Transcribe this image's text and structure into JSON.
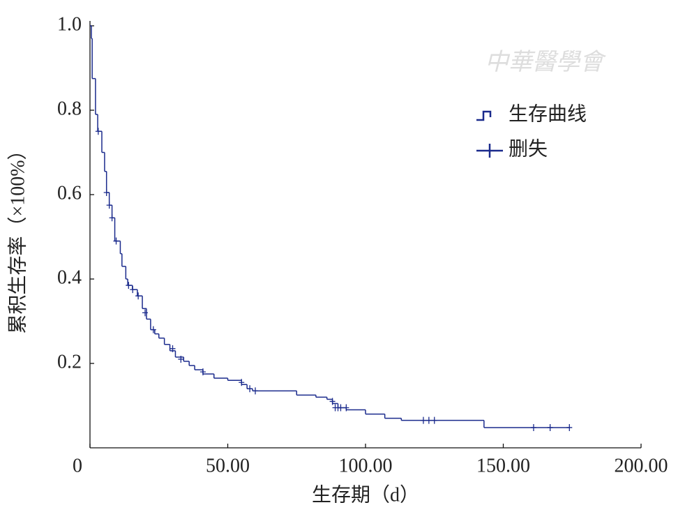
{
  "chart_data": {
    "type": "survival",
    "x_label": "生存期（d）",
    "y_label": "累积生存率（×100%）",
    "watermark": "中華醫學會",
    "xlim": [
      0,
      200
    ],
    "ylim": [
      0,
      1
    ],
    "xticks": [
      0,
      {
        "value": 50,
        "label": "50.00"
      },
      {
        "value": 100,
        "label": "100.00"
      },
      {
        "value": 150,
        "label": "150.00"
      },
      {
        "value": 200,
        "label": "200.00"
      }
    ],
    "yticks": [
      {
        "value": 0.2,
        "label": "0.2"
      },
      {
        "value": 0.4,
        "label": "0.4"
      },
      {
        "value": 0.6,
        "label": "0.6"
      },
      {
        "value": 0.8,
        "label": "0.8"
      },
      {
        "value": 1,
        "label": "1.0"
      }
    ],
    "legend_position": "upper right",
    "series": [
      {
        "name": "生存曲线",
        "color": "#1a2a8c",
        "x": [
          0,
          0.5,
          0.8,
          2,
          2.8,
          4.3,
          5.3,
          6,
          7,
          8,
          9,
          11,
          11.6,
          13,
          13.7,
          15.4,
          17.2,
          19,
          20.5,
          22,
          23.5,
          25,
          27,
          29,
          31,
          34,
          36,
          38,
          41,
          45,
          50,
          55,
          57,
          59,
          75,
          82,
          86,
          88,
          90,
          93,
          100,
          107,
          113,
          143,
          174
        ],
        "values": [
          1,
          0.97,
          0.875,
          0.79,
          0.75,
          0.7,
          0.655,
          0.605,
          0.575,
          0.545,
          0.49,
          0.46,
          0.43,
          0.4,
          0.385,
          0.375,
          0.36,
          0.33,
          0.305,
          0.28,
          0.27,
          0.26,
          0.245,
          0.23,
          0.215,
          0.205,
          0.195,
          0.185,
          0.175,
          0.165,
          0.16,
          0.15,
          0.14,
          0.135,
          0.125,
          0.12,
          0.115,
          0.105,
          0.095,
          0.09,
          0.08,
          0.07,
          0.065,
          0.048,
          0.048
        ]
      },
      {
        "name": "删失",
        "color": "#1a2a8c",
        "x": [
          3,
          6,
          7,
          8,
          9.5,
          14,
          15.5,
          17.5,
          20,
          23,
          30,
          33,
          41,
          55,
          58,
          60,
          88,
          89,
          90,
          91,
          93,
          121,
          123,
          125,
          161,
          167,
          174
        ],
        "values": [
          0.75,
          0.605,
          0.575,
          0.545,
          0.49,
          0.385,
          0.375,
          0.36,
          0.32,
          0.28,
          0.235,
          0.21,
          0.18,
          0.155,
          0.14,
          0.135,
          0.11,
          0.095,
          0.095,
          0.095,
          0.095,
          0.065,
          0.065,
          0.065,
          0.048,
          0.048,
          0.048
        ]
      }
    ]
  }
}
